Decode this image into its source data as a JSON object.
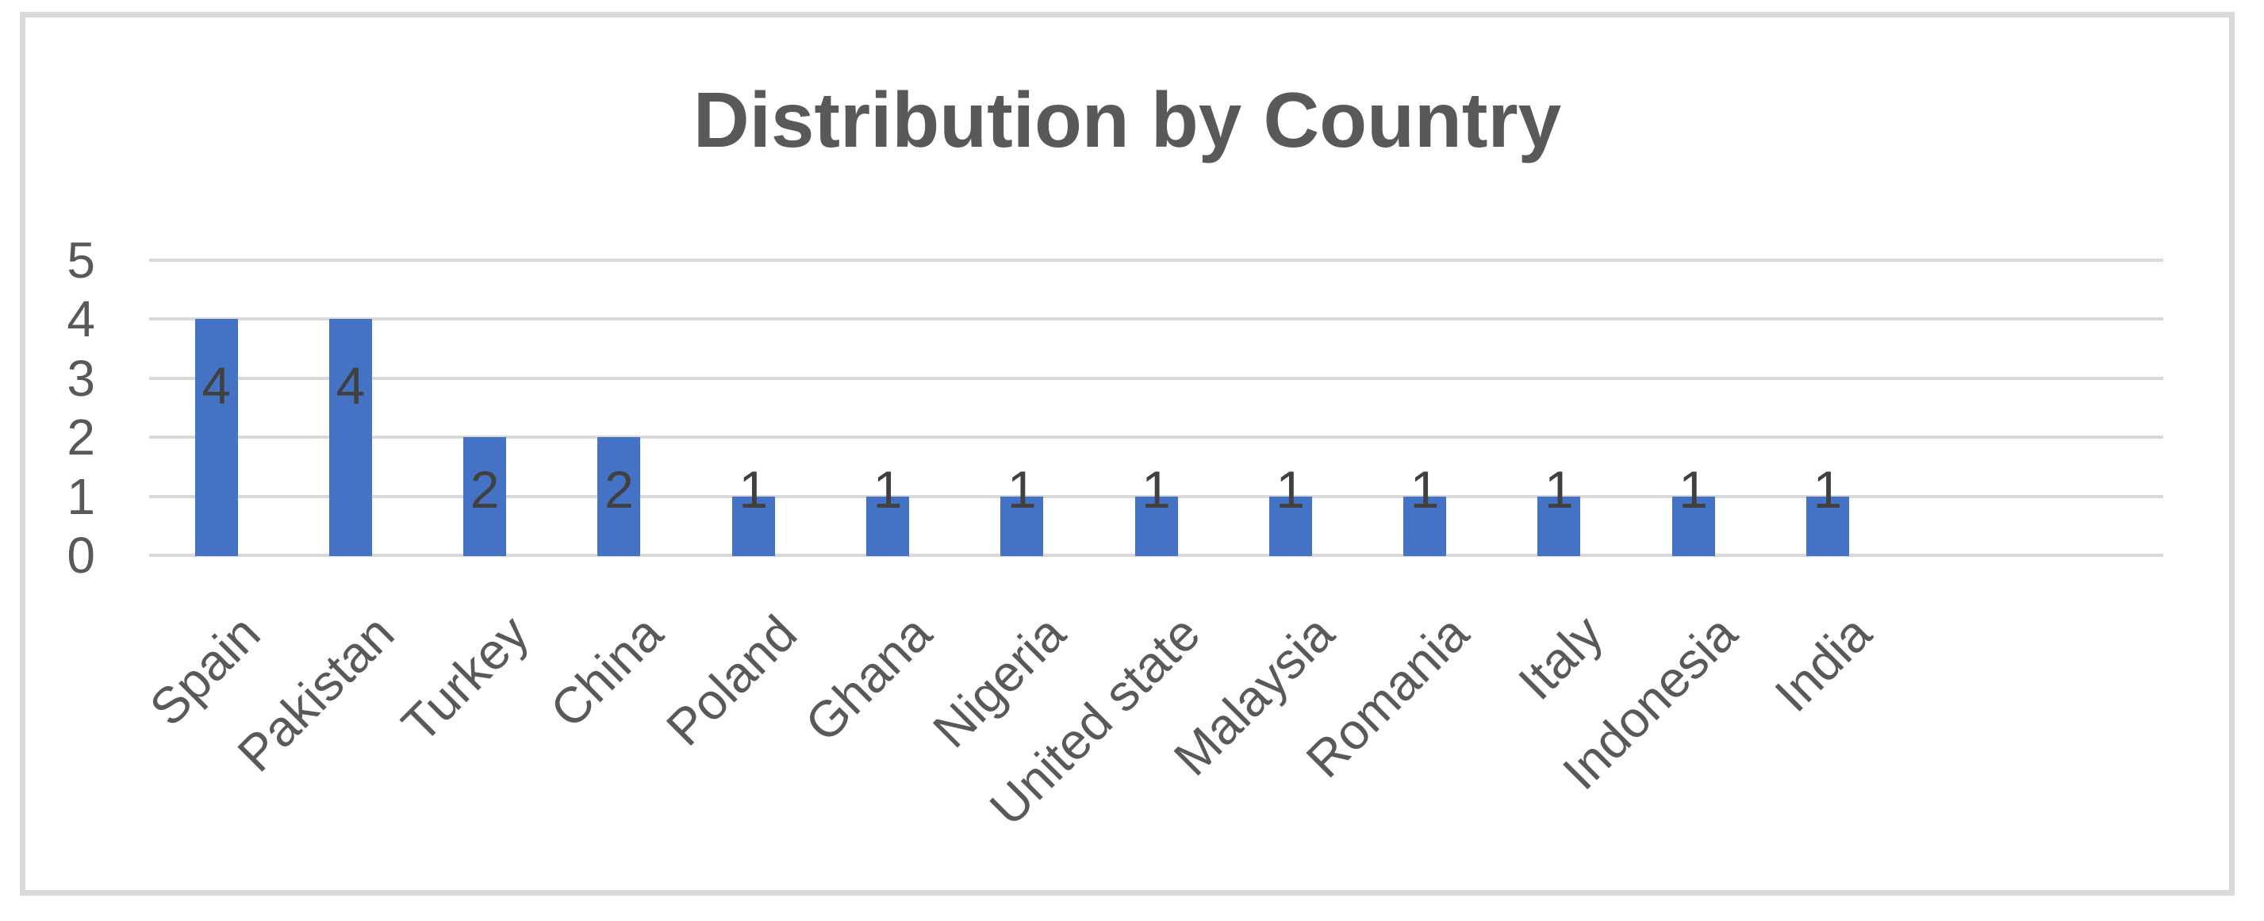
{
  "chart_data": {
    "type": "bar",
    "title": "Distribution by Country",
    "categories": [
      "Spain",
      "Pakistan",
      "Turkey",
      "China",
      "Poland",
      "Ghana",
      "Nigeria",
      "United state",
      "Malaysia",
      "Romania",
      "Italy",
      "Indonesia",
      "India"
    ],
    "values": [
      4,
      4,
      2,
      2,
      1,
      1,
      1,
      1,
      1,
      1,
      1,
      1,
      1
    ],
    "data_labels": [
      "4",
      "4",
      "2",
      "2",
      "1",
      "1",
      "1",
      "1",
      "1",
      "1",
      "1",
      "1",
      "1"
    ],
    "xlabel": "",
    "ylabel": "",
    "ylim": [
      0,
      5
    ],
    "y_ticks": [
      0,
      1,
      2,
      3,
      4,
      5
    ],
    "grid": true,
    "legend_position": "none",
    "empty_trailing_category_slots": 2,
    "colors": {
      "bar": "#4472C4",
      "gridline": "#D9D9D9",
      "frame_border": "#D9D9D9",
      "title_text": "#595959",
      "axis_text": "#595959",
      "data_label_text": "#404040",
      "background": "#FFFFFF"
    }
  }
}
